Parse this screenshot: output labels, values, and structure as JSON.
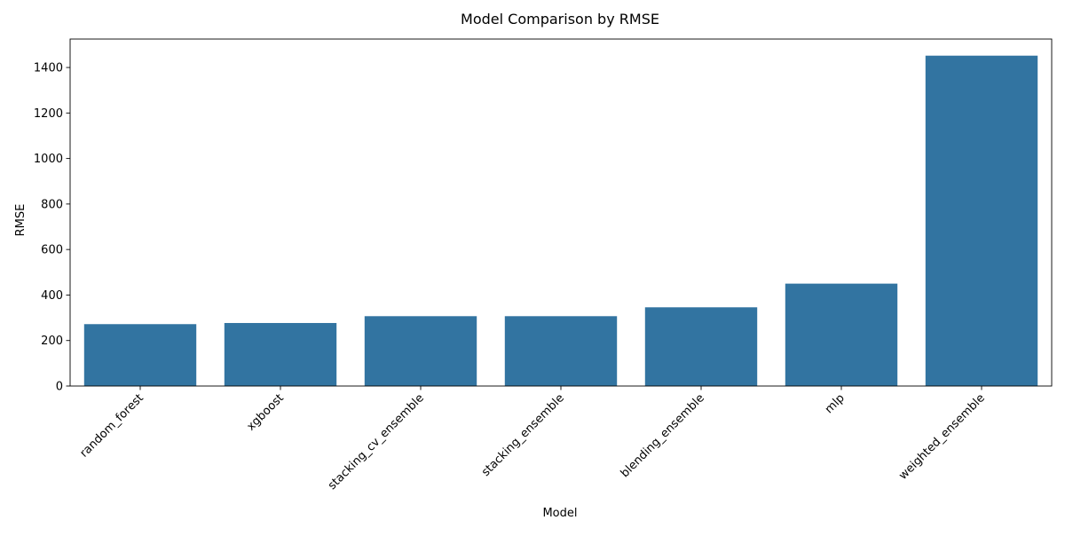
{
  "chart_data": {
    "type": "bar",
    "title": "Model Comparison by RMSE",
    "xlabel": "Model",
    "ylabel": "RMSE",
    "categories": [
      "random_forest",
      "xgboost",
      "stacking_cv_ensemble",
      "stacking_ensemble",
      "blending_ensemble",
      "mlp",
      "weighted_ensemble"
    ],
    "values": [
      272,
      277,
      307,
      307,
      346,
      450,
      1452
    ],
    "ylim": [
      0,
      1525
    ],
    "yticks": [
      0,
      200,
      400,
      600,
      800,
      1000,
      1200,
      1400
    ],
    "grid": false,
    "legend": "none",
    "bar_color": "#3274a1"
  }
}
